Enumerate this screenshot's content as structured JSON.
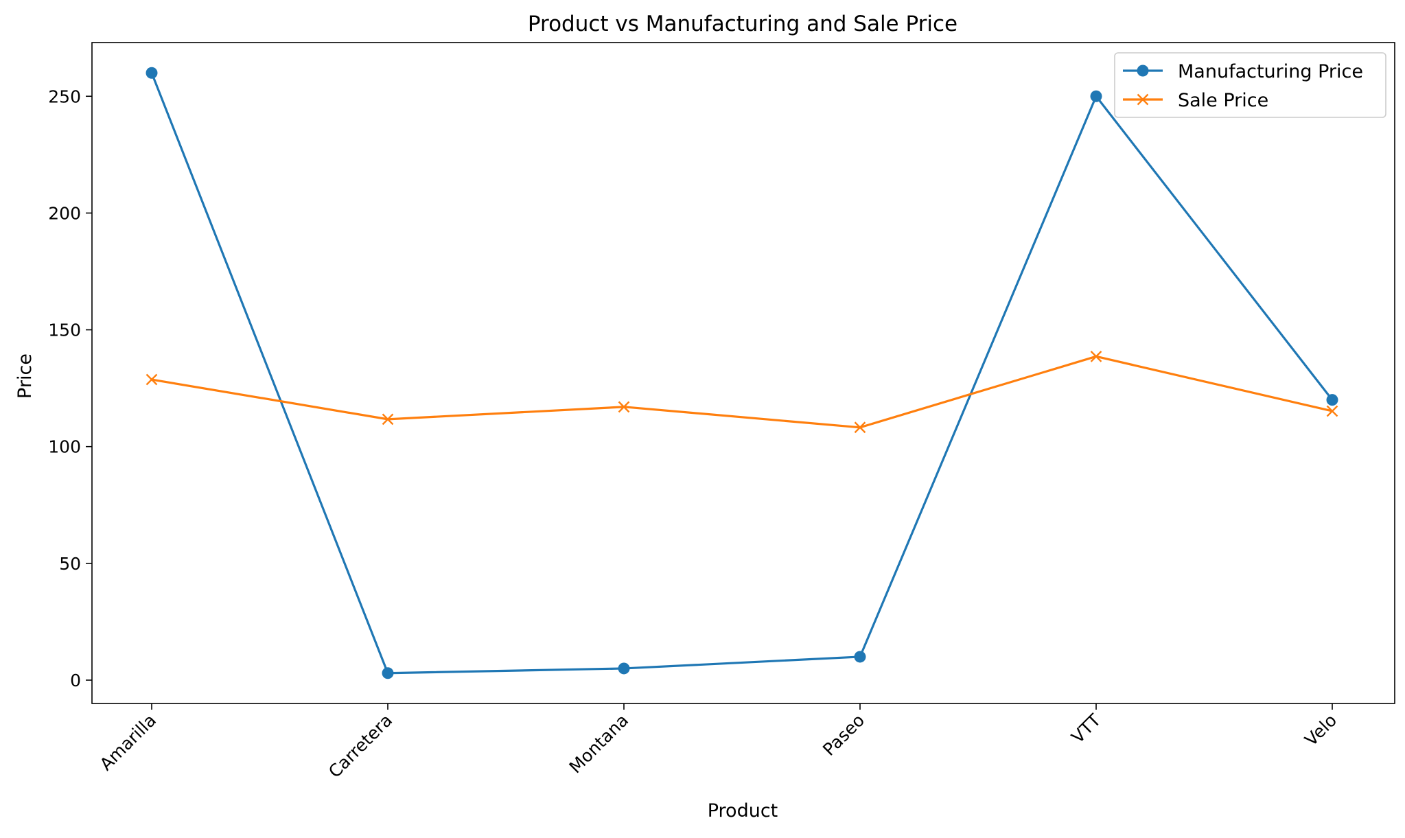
{
  "chart_data": {
    "type": "line",
    "title": "Product vs Manufacturing and Sale Price",
    "xlabel": "Product",
    "ylabel": "Price",
    "categories": [
      "Amarilla",
      "Carretera",
      "Montana",
      "Paseo",
      "VTT",
      "Velo"
    ],
    "ylim": [
      -10,
      273
    ],
    "yticks": [
      0,
      50,
      100,
      150,
      200,
      250
    ],
    "grid": false,
    "legend_position": "top-right",
    "series": [
      {
        "name": "Manufacturing Price",
        "marker": "circle",
        "color": "#1f77b4",
        "values": [
          260,
          3,
          5,
          10,
          250,
          120
        ]
      },
      {
        "name": "Sale Price",
        "marker": "x",
        "color": "#ff7f0e",
        "values": [
          128.7,
          111.7,
          117.0,
          108.2,
          138.6,
          115.2
        ]
      }
    ]
  }
}
